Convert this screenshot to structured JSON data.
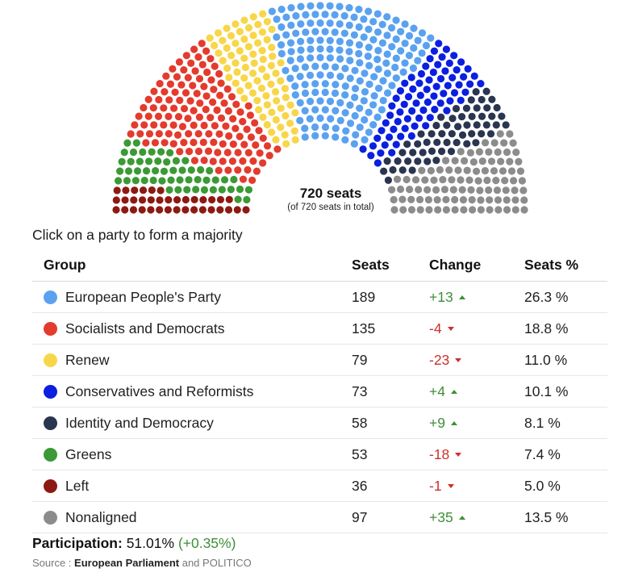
{
  "chart_data": {
    "type": "parliament",
    "total_label": "720 seats",
    "total_sublabel": "(of 720 seats in total)",
    "seats_total": 720,
    "parties": [
      {
        "name": "European People's Party",
        "seats": 189,
        "change": "+13",
        "direction": "up",
        "pct": "26.3 %",
        "color": "#5aa2f0"
      },
      {
        "name": "Socialists and Democrats",
        "seats": 135,
        "change": "-4",
        "direction": "down",
        "pct": "18.8 %",
        "color": "#e33b2e"
      },
      {
        "name": "Renew",
        "seats": 79,
        "change": "-23",
        "direction": "down",
        "pct": "11.0 %",
        "color": "#f8d64a"
      },
      {
        "name": "Conservatives and Reformists",
        "seats": 73,
        "change": "+4",
        "direction": "up",
        "pct": "10.1 %",
        "color": "#0a1fe0"
      },
      {
        "name": "Identity and Democracy",
        "seats": 58,
        "change": "+9",
        "direction": "up",
        "pct": "8.1 %",
        "color": "#2a3550"
      },
      {
        "name": "Greens",
        "seats": 53,
        "change": "-18",
        "direction": "down",
        "pct": "7.4 %",
        "color": "#3b9a35"
      },
      {
        "name": "Left",
        "seats": 36,
        "change": "-1",
        "direction": "down",
        "pct": "5.0 %",
        "color": "#8c1a12"
      },
      {
        "name": "Nonaligned",
        "seats": 97,
        "change": "+35",
        "direction": "up",
        "pct": "13.5 %",
        "color": "#8c8c8c"
      }
    ],
    "seat_order": [
      6,
      5,
      1,
      2,
      0,
      3,
      4,
      7
    ]
  },
  "instruction": "Click on a party to form a majority",
  "table": {
    "headers": {
      "group": "Group",
      "seats": "Seats",
      "change": "Change",
      "pct": "Seats %"
    }
  },
  "participation": {
    "label": "Participation:",
    "value": "51.01%",
    "change": "(+0.35%)"
  },
  "source": {
    "prefix": "Source :",
    "bold": "European Parliament",
    "and": "and",
    "other": "POLITICO"
  }
}
